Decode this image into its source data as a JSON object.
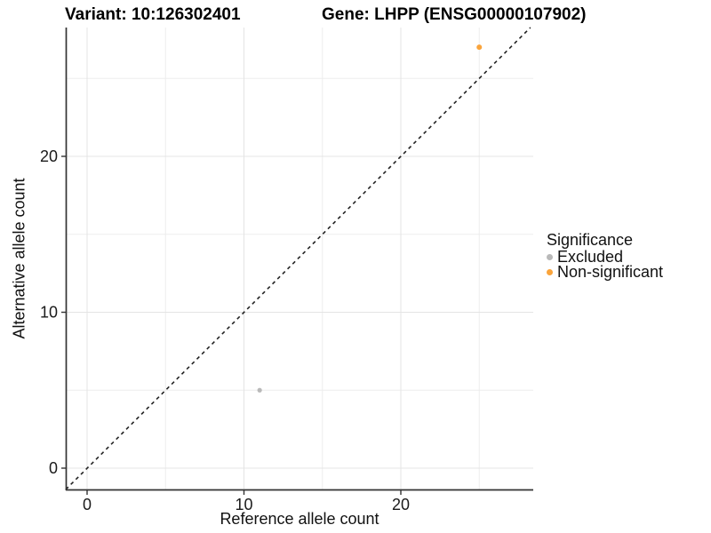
{
  "titles": {
    "variant": "Variant: 10:126302401",
    "gene": "Gene: LHPP (ENSG00000107902)"
  },
  "chart_data": {
    "type": "scatter",
    "xlabel": "Reference allele count",
    "ylabel": "Alternative allele count",
    "x_ticks": [
      0,
      10,
      20
    ],
    "y_ticks": [
      0,
      10,
      20
    ],
    "x_minor_ticks": [
      5,
      15,
      25
    ],
    "y_minor_ticks": [
      5,
      15,
      25
    ],
    "xlim": [
      -1.36,
      28.44
    ],
    "ylim": [
      -1.37,
      28.26
    ],
    "grid": true,
    "abline": {
      "slope": 1,
      "intercept": 0,
      "style": "dashed",
      "color": "#222222"
    },
    "series": [
      {
        "name": "Excluded",
        "color": "#B9B9B9",
        "point_radius": 2.6,
        "points": [
          {
            "x": 11,
            "y": 5
          }
        ]
      },
      {
        "name": "Non-significant",
        "color": "#FAA43B",
        "point_radius": 3,
        "points": [
          {
            "x": 25,
            "y": 27
          }
        ]
      }
    ],
    "legend": {
      "title": "Significance",
      "position": "right"
    },
    "colors": {
      "major_grid": "#E4E4E4",
      "minor_grid": "#EDEDED",
      "axis_line": "#333333",
      "tick_text": "#1a1a1a"
    }
  }
}
